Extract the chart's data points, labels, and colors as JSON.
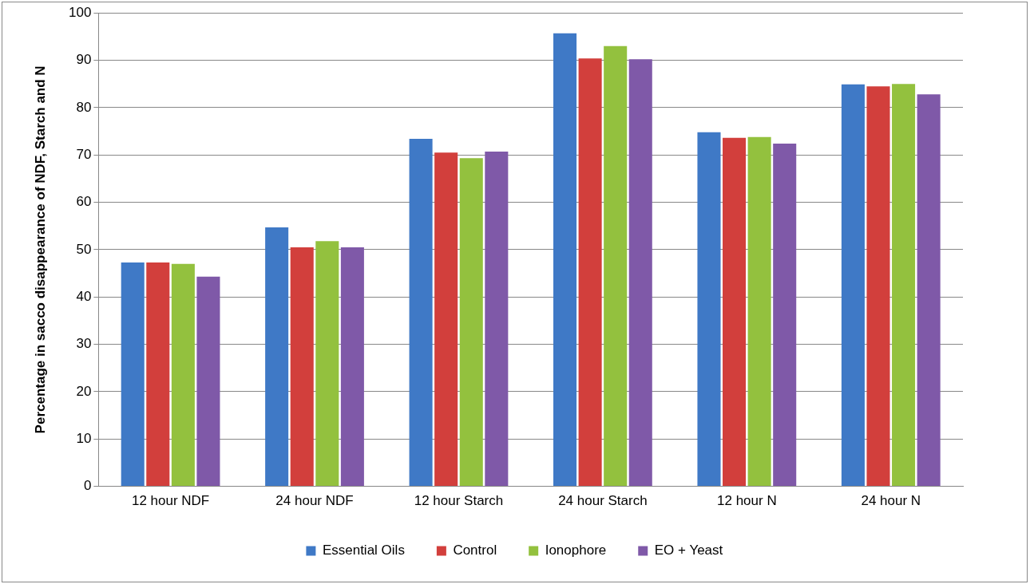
{
  "chart_data": {
    "type": "bar",
    "ylabel": "Percentage in sacco disappearance of NDF, Starch and N",
    "categories": [
      "12 hour NDF",
      "24 hour NDF",
      "12 hour Starch",
      "24 hour Starch",
      "12 hour N",
      "24 hour N"
    ],
    "series": [
      {
        "name": "Essential Oils",
        "color": "#3f79c6",
        "values": [
          47.3,
          54.7,
          73.4,
          95.7,
          74.8,
          84.9
        ]
      },
      {
        "name": "Control",
        "color": "#d23f3c",
        "values": [
          47.3,
          50.5,
          70.5,
          90.4,
          73.6,
          84.5
        ]
      },
      {
        "name": "Ionophore",
        "color": "#93c13e",
        "values": [
          47,
          51.8,
          69.3,
          93,
          73.8,
          85
        ]
      },
      {
        "name": "EO + Yeast",
        "color": "#7f59a8",
        "values": [
          44.3,
          50.5,
          70.7,
          90.2,
          72.4,
          82.8
        ]
      }
    ],
    "ylim": [
      0,
      100
    ],
    "yticks": [
      0,
      10,
      20,
      30,
      40,
      50,
      60,
      70,
      80,
      90,
      100
    ],
    "grid": "y",
    "legend": "bottom"
  }
}
